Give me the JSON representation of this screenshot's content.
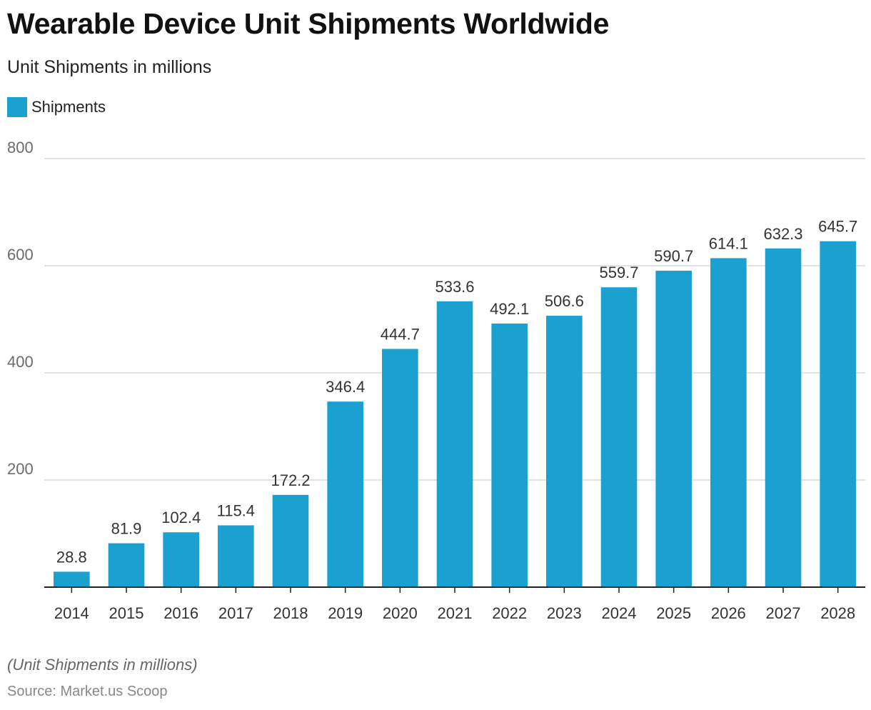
{
  "header": {
    "title": "Wearable Device Unit Shipments Worldwide",
    "subtitle": "Unit Shipments in millions"
  },
  "legend": {
    "label": "Shipments",
    "color": "#1aa1cf"
  },
  "footer": {
    "note": "(Unit Shipments in millions)",
    "source": "Source: Market.us Scoop"
  },
  "colors": {
    "bar": "#1aa1cf",
    "grid": "#d9d9d9",
    "axis": "#222222",
    "tick_label": "#6b6b6b",
    "value_label": "#333333"
  },
  "chart_data": {
    "type": "bar",
    "categories": [
      "2014",
      "2015",
      "2016",
      "2017",
      "2018",
      "2019",
      "2020",
      "2021",
      "2022",
      "2023",
      "2024",
      "2025",
      "2026",
      "2027",
      "2028"
    ],
    "series": [
      {
        "name": "Shipments",
        "values": [
          28.8,
          81.9,
          102.4,
          115.4,
          172.2,
          346.4,
          444.7,
          533.6,
          492.1,
          506.6,
          559.7,
          590.7,
          614.1,
          632.3,
          645.7
        ]
      }
    ],
    "value_labels": [
      "28.8",
      "81.9",
      "102.4",
      "115.4",
      "172.2",
      "346.4",
      "444.7",
      "533.6",
      "492.1",
      "506.6",
      "559.7",
      "590.7",
      "614.1",
      "632.3",
      "645.7"
    ],
    "title": "Wearable Device Unit Shipments Worldwide",
    "subtitle": "Unit Shipments in millions",
    "xlabel": "",
    "ylabel": "",
    "ylim": [
      0,
      800
    ],
    "yticks": [
      200,
      400,
      600,
      800
    ],
    "ytick_labels": [
      "200",
      "400",
      "600",
      "800"
    ],
    "grid": true,
    "legend_position": "top-left"
  }
}
